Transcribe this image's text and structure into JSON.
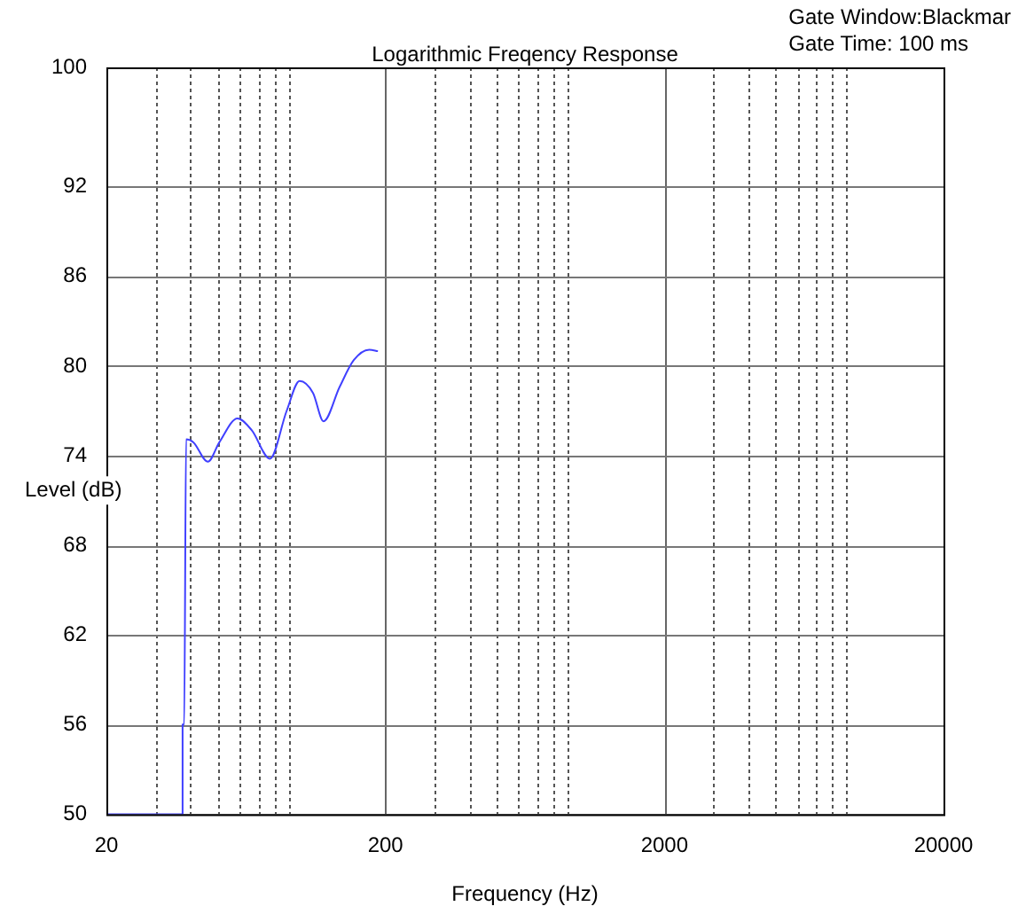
{
  "chart_data": {
    "type": "line",
    "title": "Logarithmic Freqency Response",
    "xlabel": "Frequency (Hz)",
    "ylabel": "Level (dB)",
    "annotations": [
      "Gate Window:Blackmar",
      "Gate Time: 100 ms"
    ],
    "log": "x",
    "grid": true,
    "legend": false,
    "marker": "none",
    "line_style": "solid",
    "xlim": [
      20,
      20000
    ],
    "ylim": [
      50,
      100
    ],
    "xticks": [
      20,
      {
        "value": 30,
        "label": null
      },
      {
        "value": 40,
        "label": null
      },
      {
        "value": 50,
        "label": null
      },
      {
        "value": 60,
        "label": null
      },
      {
        "value": 70,
        "label": null
      },
      {
        "value": 80,
        "label": null
      },
      {
        "value": 90,
        "label": null
      },
      200,
      {
        "value": 300,
        "label": null
      },
      {
        "value": 400,
        "label": null
      },
      {
        "value": 500,
        "label": null
      },
      {
        "value": 600,
        "label": null
      },
      {
        "value": 700,
        "label": null
      },
      {
        "value": 800,
        "label": null
      },
      {
        "value": 900,
        "label": null
      },
      2000,
      {
        "value": 3000,
        "label": null
      },
      {
        "value": 4000,
        "label": null
      },
      {
        "value": 5000,
        "label": null
      },
      {
        "value": 6000,
        "label": null
      },
      {
        "value": 7000,
        "label": null
      },
      {
        "value": 8000,
        "label": null
      },
      {
        "value": 9000,
        "label": null
      },
      20000
    ],
    "yticks": [
      50,
      56,
      62,
      68,
      74,
      80,
      86,
      92,
      100
    ],
    "series": [
      {
        "color": "#4040ff",
        "x": [
          20,
          37.5,
          37.5,
          38,
          38.6,
          41,
          46.2,
          50.8,
          59,
          66.4,
          77.1,
          88.5,
          98.5,
          110,
          120,
          137,
          154,
          175,
          188
        ],
        "values": [
          50,
          50,
          56,
          56,
          75.1,
          74.9,
          73.6,
          74.9,
          76.5,
          75.7,
          73.8,
          77,
          79,
          78.2,
          76.3,
          78.6,
          80.4,
          81.1,
          81
        ]
      }
    ]
  }
}
